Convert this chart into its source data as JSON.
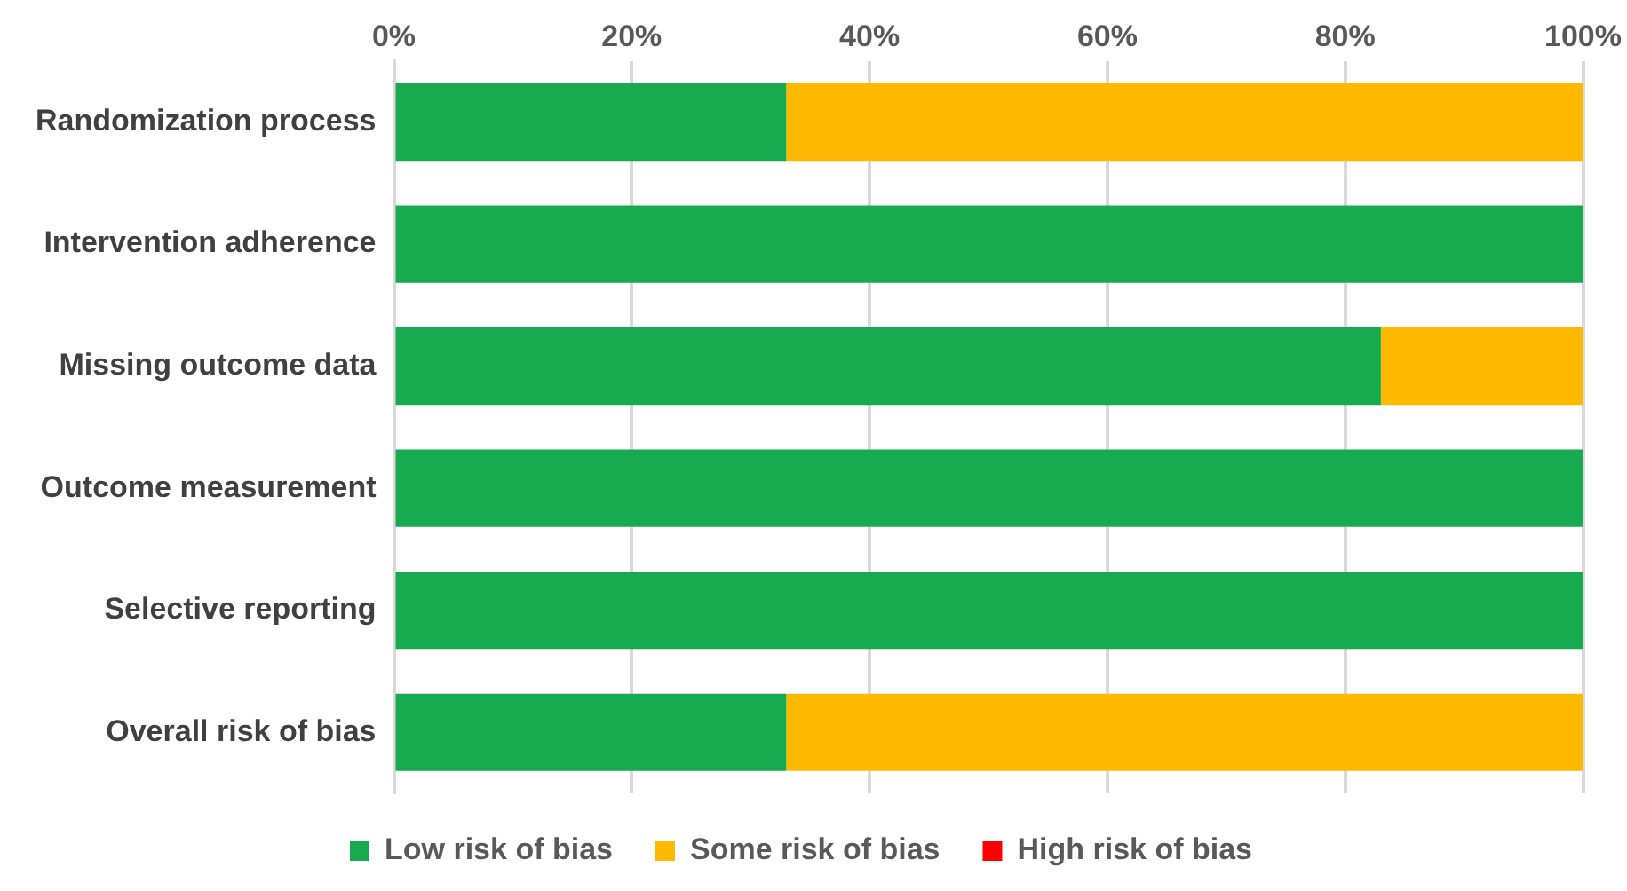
{
  "chart_data": {
    "type": "bar",
    "orientation": "horizontal",
    "stacked": true,
    "categories": [
      "Randomization process",
      "Intervention adherence",
      "Missing outcome data",
      "Outcome measurement",
      "Selective reporting",
      "Overall risk of bias"
    ],
    "series": [
      {
        "name": "Low risk of bias",
        "color": "#18aa4e",
        "values": [
          33,
          100,
          83,
          100,
          100,
          33
        ]
      },
      {
        "name": "Some risk of bias",
        "color": "#ffba00",
        "values": [
          67,
          0,
          17,
          0,
          0,
          67
        ]
      },
      {
        "name": "High risk of bias",
        "color": "#ff0000",
        "values": [
          0,
          0,
          0,
          0,
          0,
          0
        ]
      }
    ],
    "xlim": [
      0,
      100
    ],
    "xticks": [
      {
        "value": 0,
        "label": "0%"
      },
      {
        "value": 20,
        "label": "20%"
      },
      {
        "value": 40,
        "label": "40%"
      },
      {
        "value": 60,
        "label": "60%"
      },
      {
        "value": 80,
        "label": "80%"
      },
      {
        "value": 100,
        "label": "100%"
      }
    ],
    "grid": "x",
    "legend": "bottom"
  }
}
